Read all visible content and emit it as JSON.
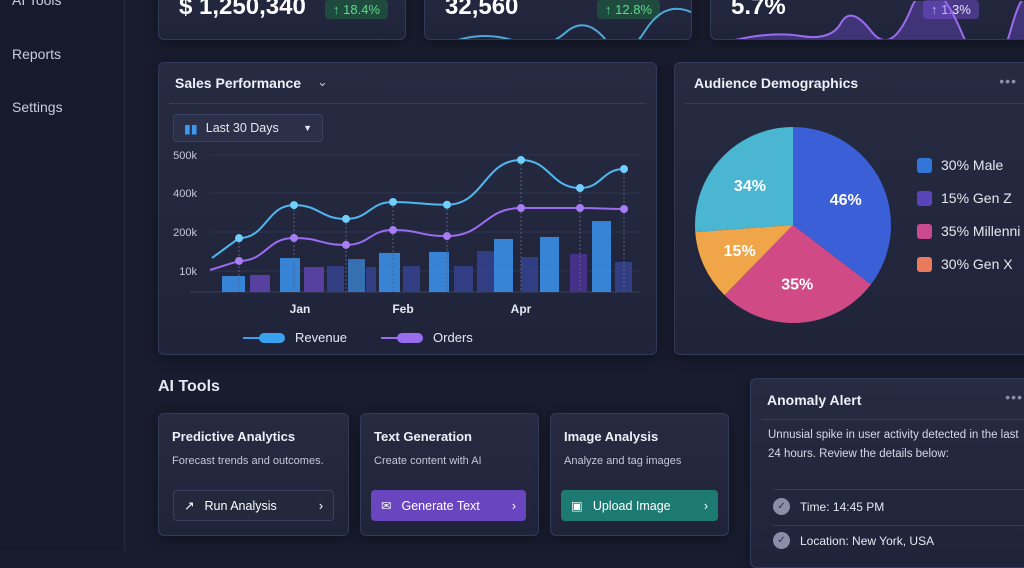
{
  "sidebar": {
    "items": [
      {
        "label": "AI Tools",
        "icon": "ai-icon"
      },
      {
        "label": "Reports",
        "icon": "reports-icon"
      },
      {
        "label": "Settings",
        "icon": "settings-icon"
      }
    ]
  },
  "kpis": [
    {
      "value": "$ 1,250,340",
      "change": "18.4%",
      "arrow": "↑",
      "color": "#3fbf6a"
    },
    {
      "value": "32,560",
      "change": "12.8%",
      "arrow": "↑",
      "color": "#3fbf6a"
    },
    {
      "value": "5.7%",
      "change": "1.3%",
      "arrow": "↑",
      "color": "#9d7cf0"
    }
  ],
  "sales": {
    "title": "Sales Performance",
    "range": "Last 30 Days",
    "legend": [
      "Revenue",
      "Orders"
    ]
  },
  "chart_data": [
    {
      "type": "line",
      "title": "Sales Performance",
      "y_ticks": [
        "500k",
        "400k",
        "200k",
        "10k"
      ],
      "x_ticks": [
        "Jan",
        "Feb",
        "Apr"
      ],
      "series": [
        {
          "name": "Revenue",
          "color": "#4fb8f0",
          "values": [
            170000,
            338000,
            267000,
            354000,
            340000,
            487000,
            413000,
            463000
          ]
        },
        {
          "name": "Orders",
          "color": "#9a6cf0",
          "values": [
            59000,
            171000,
            137000,
            210000,
            180000,
            323000,
            323000,
            318000
          ]
        }
      ],
      "bars": [
        7600,
        8100,
        73000,
        29000,
        34000,
        68000,
        29000,
        98000,
        34000,
        103000,
        34000,
        107000,
        166000,
        78000,
        176000,
        93000,
        256000,
        54000
      ],
      "grid": true,
      "legend": "bottom"
    },
    {
      "type": "pie",
      "title": "Audience Demographics",
      "slices": [
        {
          "label": "46%",
          "value": 46,
          "color": "#3a5fd6"
        },
        {
          "label": "35%",
          "value": 35,
          "color": "#d04a86"
        },
        {
          "label": "15%",
          "value": 15,
          "color": "#f0a548"
        },
        {
          "label": "34%",
          "value": 34,
          "color": "#4bb6d2"
        }
      ],
      "legend_entries": [
        {
          "label": "30% Male",
          "color": "#3374d8"
        },
        {
          "label": "15% Gen Z",
          "color": "#5a45b8"
        },
        {
          "label": "35% Millenni",
          "color": "#c94a8e"
        },
        {
          "label": "30% Gen X",
          "color": "#ea7a5c"
        }
      ],
      "legend": "right"
    }
  ],
  "ai_tools": {
    "heading": "AI Tools",
    "cards": [
      {
        "title": "Predictive Analytics",
        "desc": "Forecast trends and outcomes.",
        "button": "Run Analysis"
      },
      {
        "title": "Text Generation",
        "desc": "Create content with AI",
        "button": "Generate Text"
      },
      {
        "title": "Image Analysis",
        "desc": "Analyze and tag images",
        "button": "Upload Image"
      }
    ]
  },
  "anomaly": {
    "title": "Anomaly Alert",
    "text": "Unnusial spike in user activity detected in the last 24 hours. Review the details below:",
    "details": [
      "Time: 14:45 PM",
      "Location: New York, USA"
    ]
  }
}
